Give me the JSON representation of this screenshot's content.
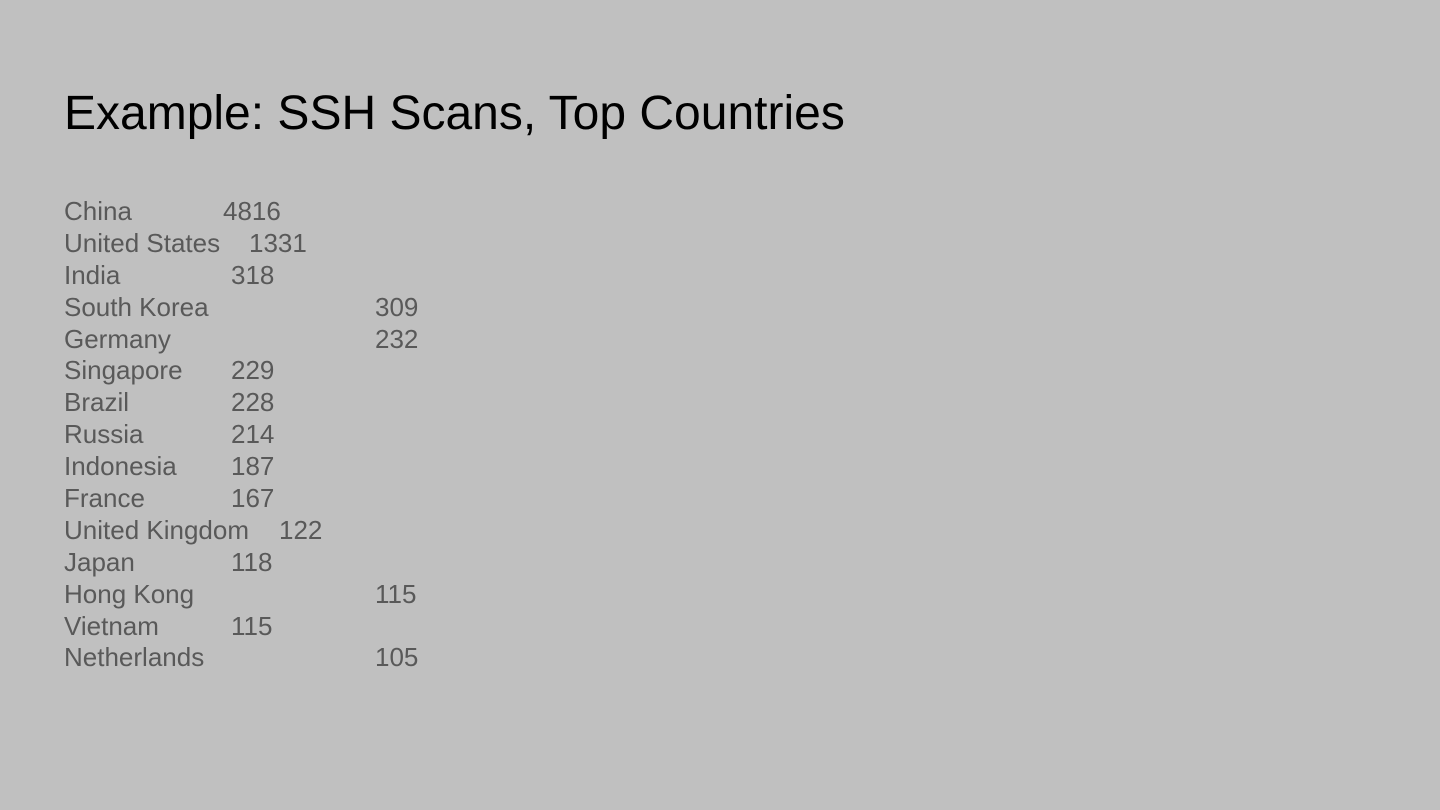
{
  "slide": {
    "title": "Example: SSH Scans, Top Countries"
  },
  "countries": [
    {
      "name": "China",
      "count": "4816"
    },
    {
      "name": "United States",
      "count": "1331"
    },
    {
      "name": "India",
      "count": "318"
    },
    {
      "name": "South Korea",
      "count": "309"
    },
    {
      "name": "Germany",
      "count": "232"
    },
    {
      "name": "Singapore",
      "count": "229"
    },
    {
      "name": "Brazil",
      "count": "228"
    },
    {
      "name": "Russia",
      "count": "214"
    },
    {
      "name": "Indonesia",
      "count": "187"
    },
    {
      "name": "France",
      "count": "167"
    },
    {
      "name": "United Kingdom",
      "count": "122"
    },
    {
      "name": "Japan",
      "count": "118"
    },
    {
      "name": "Hong Kong",
      "count": "115"
    },
    {
      "name": "Vietnam",
      "count": "115"
    },
    {
      "name": "Netherlands",
      "count": "105"
    }
  ]
}
